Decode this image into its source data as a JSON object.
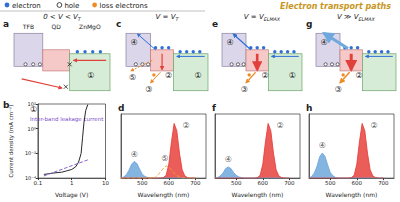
{
  "legend": [
    {
      "label": "electron",
      "marker": "filled",
      "color": "#2f6fd6"
    },
    {
      "label": "hole",
      "marker": "open",
      "color": "#333333"
    },
    {
      "label": "loss electrons",
      "marker": "filled",
      "color": "#f08a24"
    }
  ],
  "title": "Electron transport paths",
  "layers": [
    "TFB",
    "QD",
    "ZnMgO"
  ],
  "diagrams": [
    {
      "panel": "a",
      "condition": {
        "text": "0 < V < V",
        "sub": "T"
      },
      "paths": [
        "①"
      ]
    },
    {
      "panel": "c",
      "condition": {
        "text": "V = V",
        "sub": "T"
      },
      "paths": [
        "⑤",
        "③",
        "②",
        "④",
        "①"
      ]
    },
    {
      "panel": "e",
      "condition": {
        "text": "V = V",
        "sub": "ELMAX"
      },
      "paths": [
        "④",
        "③",
        "②",
        "①"
      ]
    },
    {
      "panel": "g",
      "condition": {
        "text": "V ≫ V",
        "sub": "ELMAX"
      },
      "paths": [
        "④",
        "③",
        "②"
      ]
    }
  ],
  "chart_data": [
    {
      "panel": "b",
      "type": "line",
      "log": true,
      "x_label": "Voltage (V)",
      "y_label": "Current density (mA cm⁻²)",
      "path": "①",
      "annotation": "Inter-band leakage current",
      "xlim": [
        0.1,
        10
      ],
      "xticks": [
        0.1,
        1,
        10
      ],
      "ylim": [
        0.0001,
        100
      ],
      "yticks": [
        {
          "value": 0.0001,
          "label": "10⁻⁴"
        },
        {
          "value": 0.01,
          "label": "10⁻²"
        },
        {
          "value": 1,
          "label": "10⁰"
        },
        {
          "value": 100,
          "label": "10²"
        }
      ],
      "series": [
        {
          "color": "#111111",
          "line_style": "solid",
          "x": [
            0.15,
            0.2,
            0.3,
            0.5,
            0.7,
            1,
            1.3,
            1.6,
            1.9,
            2.1,
            2.3,
            2.6,
            3
          ],
          "values": [
            0.0002,
            0.00022,
            0.00026,
            0.0003,
            0.00038,
            0.0005,
            0.0008,
            0.002,
            0.01,
            0.2,
            3,
            30,
            90
          ]
        },
        {
          "color": "#7b4fc9",
          "line_style": "dashed",
          "x": [
            0.15,
            3
          ],
          "values": [
            0.00015,
            0.003
          ]
        }
      ]
    },
    {
      "panel": "d",
      "type": "area",
      "x_label": "Wavelength (nm)",
      "tick_labels": "x",
      "xlim": [
        420,
        740
      ],
      "xticks": [
        500,
        600,
        700
      ],
      "ylim": [
        0,
        1.15
      ],
      "x": [
        420,
        430,
        440,
        450,
        460,
        470,
        480,
        490,
        500,
        510,
        520,
        530,
        540,
        550,
        560,
        570,
        580,
        590,
        600,
        610,
        620,
        630,
        640,
        650,
        660,
        670,
        680,
        690,
        700
      ],
      "series": [
        {
          "color": "#6fa8dc",
          "values": [
            0,
            0.02,
            0.06,
            0.14,
            0.25,
            0.3,
            0.26,
            0.16,
            0.07,
            0.03,
            0.01,
            0,
            0,
            0,
            0,
            0,
            0,
            0,
            0,
            0,
            0,
            0,
            0,
            0,
            0,
            0,
            0,
            0,
            0
          ]
        },
        {
          "color": "#e8413c",
          "values": [
            0,
            0,
            0,
            0,
            0,
            0,
            0,
            0,
            0,
            0,
            0,
            0,
            0,
            0,
            0,
            0,
            0.01,
            0.05,
            0.25,
            0.65,
            0.98,
            0.85,
            0.45,
            0.15,
            0.04,
            0.01,
            0,
            0,
            0
          ]
        },
        {
          "color": "#f0a030",
          "type": "line",
          "line_style": "dashed",
          "values": [
            0,
            0,
            0,
            0,
            0,
            0,
            0,
            0,
            0,
            0,
            0,
            0,
            0,
            0.02,
            0.06,
            0.12,
            0.18,
            0.22,
            0.2,
            0.15,
            0.09,
            0.05,
            0.02,
            0,
            0,
            0,
            0,
            0,
            0
          ]
        }
      ],
      "annotations": [
        {
          "text": "④",
          "x": 470,
          "y": 0.42
        },
        {
          "text": "⑤",
          "x": 585,
          "y": 0.36
        },
        {
          "text": "②",
          "x": 665,
          "y": 0.95
        }
      ]
    },
    {
      "panel": "f",
      "type": "area",
      "x_label": "Wavelength (nm)",
      "tick_labels": "x",
      "xlim": [
        420,
        740
      ],
      "xticks": [
        500,
        600,
        700
      ],
      "ylim": [
        0,
        1.15
      ],
      "x": [
        420,
        430,
        440,
        450,
        460,
        470,
        480,
        490,
        500,
        510,
        520,
        530,
        540,
        550,
        560,
        570,
        580,
        590,
        600,
        610,
        620,
        630,
        640,
        650,
        660,
        670,
        680,
        690,
        700
      ],
      "series": [
        {
          "color": "#6fa8dc",
          "values": [
            0,
            0.01,
            0.04,
            0.09,
            0.17,
            0.2,
            0.17,
            0.1,
            0.05,
            0.02,
            0.01,
            0,
            0,
            0,
            0,
            0,
            0,
            0,
            0,
            0,
            0,
            0,
            0,
            0,
            0,
            0,
            0,
            0,
            0
          ]
        },
        {
          "color": "#e8413c",
          "values": [
            0,
            0,
            0,
            0,
            0,
            0,
            0,
            0,
            0,
            0,
            0,
            0,
            0,
            0,
            0,
            0,
            0.01,
            0.05,
            0.25,
            0.65,
            0.98,
            0.85,
            0.45,
            0.15,
            0.04,
            0.01,
            0,
            0,
            0
          ]
        }
      ],
      "annotations": [
        {
          "text": "④",
          "x": 470,
          "y": 0.33
        },
        {
          "text": "②",
          "x": 665,
          "y": 0.95
        }
      ]
    },
    {
      "panel": "h",
      "type": "area",
      "x_label": "Wavelength (nm)",
      "tick_labels": "x",
      "xlim": [
        420,
        740
      ],
      "xticks": [
        500,
        600,
        700
      ],
      "ylim": [
        0,
        1.15
      ],
      "x": [
        420,
        430,
        440,
        450,
        460,
        470,
        480,
        490,
        500,
        510,
        520,
        530,
        540,
        550,
        560,
        570,
        580,
        590,
        600,
        610,
        620,
        630,
        640,
        650,
        660,
        670,
        680,
        690,
        700
      ],
      "series": [
        {
          "color": "#6fa8dc",
          "values": [
            0,
            0.03,
            0.09,
            0.21,
            0.38,
            0.45,
            0.39,
            0.24,
            0.1,
            0.04,
            0.01,
            0,
            0,
            0,
            0,
            0,
            0,
            0,
            0,
            0,
            0,
            0,
            0,
            0,
            0,
            0,
            0,
            0,
            0
          ]
        },
        {
          "color": "#e8413c",
          "values": [
            0,
            0,
            0,
            0,
            0,
            0,
            0,
            0,
            0,
            0,
            0,
            0,
            0,
            0,
            0,
            0,
            0.01,
            0.05,
            0.25,
            0.65,
            0.98,
            0.85,
            0.45,
            0.15,
            0.04,
            0.01,
            0,
            0,
            0
          ]
        }
      ],
      "annotations": [
        {
          "text": "④",
          "x": 470,
          "y": 0.58
        },
        {
          "text": "②",
          "x": 665,
          "y": 0.95
        }
      ]
    }
  ]
}
